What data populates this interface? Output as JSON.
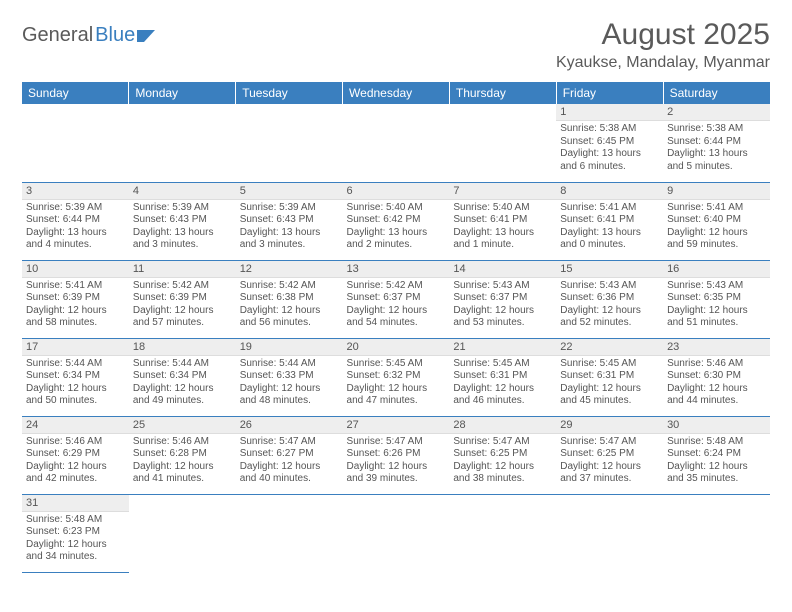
{
  "logo": {
    "text1": "General",
    "text2": "Blue"
  },
  "title": "August 2025",
  "location": "Kyaukse, Mandalay, Myanmar",
  "colors": {
    "header_bg": "#3a7fbf",
    "header_text": "#ffffff",
    "daynum_bg": "#eeeeee",
    "rule": "#3a7fbf",
    "text": "#555555",
    "page_bg": "#ffffff"
  },
  "weekdays": [
    "Sunday",
    "Monday",
    "Tuesday",
    "Wednesday",
    "Thursday",
    "Friday",
    "Saturday"
  ],
  "weeks": [
    [
      null,
      null,
      null,
      null,
      null,
      {
        "n": "1",
        "sr": "Sunrise: 5:38 AM",
        "ss": "Sunset: 6:45 PM",
        "dl": "Daylight: 13 hours and 6 minutes."
      },
      {
        "n": "2",
        "sr": "Sunrise: 5:38 AM",
        "ss": "Sunset: 6:44 PM",
        "dl": "Daylight: 13 hours and 5 minutes."
      }
    ],
    [
      {
        "n": "3",
        "sr": "Sunrise: 5:39 AM",
        "ss": "Sunset: 6:44 PM",
        "dl": "Daylight: 13 hours and 4 minutes."
      },
      {
        "n": "4",
        "sr": "Sunrise: 5:39 AM",
        "ss": "Sunset: 6:43 PM",
        "dl": "Daylight: 13 hours and 3 minutes."
      },
      {
        "n": "5",
        "sr": "Sunrise: 5:39 AM",
        "ss": "Sunset: 6:43 PM",
        "dl": "Daylight: 13 hours and 3 minutes."
      },
      {
        "n": "6",
        "sr": "Sunrise: 5:40 AM",
        "ss": "Sunset: 6:42 PM",
        "dl": "Daylight: 13 hours and 2 minutes."
      },
      {
        "n": "7",
        "sr": "Sunrise: 5:40 AM",
        "ss": "Sunset: 6:41 PM",
        "dl": "Daylight: 13 hours and 1 minute."
      },
      {
        "n": "8",
        "sr": "Sunrise: 5:41 AM",
        "ss": "Sunset: 6:41 PM",
        "dl": "Daylight: 13 hours and 0 minutes."
      },
      {
        "n": "9",
        "sr": "Sunrise: 5:41 AM",
        "ss": "Sunset: 6:40 PM",
        "dl": "Daylight: 12 hours and 59 minutes."
      }
    ],
    [
      {
        "n": "10",
        "sr": "Sunrise: 5:41 AM",
        "ss": "Sunset: 6:39 PM",
        "dl": "Daylight: 12 hours and 58 minutes."
      },
      {
        "n": "11",
        "sr": "Sunrise: 5:42 AM",
        "ss": "Sunset: 6:39 PM",
        "dl": "Daylight: 12 hours and 57 minutes."
      },
      {
        "n": "12",
        "sr": "Sunrise: 5:42 AM",
        "ss": "Sunset: 6:38 PM",
        "dl": "Daylight: 12 hours and 56 minutes."
      },
      {
        "n": "13",
        "sr": "Sunrise: 5:42 AM",
        "ss": "Sunset: 6:37 PM",
        "dl": "Daylight: 12 hours and 54 minutes."
      },
      {
        "n": "14",
        "sr": "Sunrise: 5:43 AM",
        "ss": "Sunset: 6:37 PM",
        "dl": "Daylight: 12 hours and 53 minutes."
      },
      {
        "n": "15",
        "sr": "Sunrise: 5:43 AM",
        "ss": "Sunset: 6:36 PM",
        "dl": "Daylight: 12 hours and 52 minutes."
      },
      {
        "n": "16",
        "sr": "Sunrise: 5:43 AM",
        "ss": "Sunset: 6:35 PM",
        "dl": "Daylight: 12 hours and 51 minutes."
      }
    ],
    [
      {
        "n": "17",
        "sr": "Sunrise: 5:44 AM",
        "ss": "Sunset: 6:34 PM",
        "dl": "Daylight: 12 hours and 50 minutes."
      },
      {
        "n": "18",
        "sr": "Sunrise: 5:44 AM",
        "ss": "Sunset: 6:34 PM",
        "dl": "Daylight: 12 hours and 49 minutes."
      },
      {
        "n": "19",
        "sr": "Sunrise: 5:44 AM",
        "ss": "Sunset: 6:33 PM",
        "dl": "Daylight: 12 hours and 48 minutes."
      },
      {
        "n": "20",
        "sr": "Sunrise: 5:45 AM",
        "ss": "Sunset: 6:32 PM",
        "dl": "Daylight: 12 hours and 47 minutes."
      },
      {
        "n": "21",
        "sr": "Sunrise: 5:45 AM",
        "ss": "Sunset: 6:31 PM",
        "dl": "Daylight: 12 hours and 46 minutes."
      },
      {
        "n": "22",
        "sr": "Sunrise: 5:45 AM",
        "ss": "Sunset: 6:31 PM",
        "dl": "Daylight: 12 hours and 45 minutes."
      },
      {
        "n": "23",
        "sr": "Sunrise: 5:46 AM",
        "ss": "Sunset: 6:30 PM",
        "dl": "Daylight: 12 hours and 44 minutes."
      }
    ],
    [
      {
        "n": "24",
        "sr": "Sunrise: 5:46 AM",
        "ss": "Sunset: 6:29 PM",
        "dl": "Daylight: 12 hours and 42 minutes."
      },
      {
        "n": "25",
        "sr": "Sunrise: 5:46 AM",
        "ss": "Sunset: 6:28 PM",
        "dl": "Daylight: 12 hours and 41 minutes."
      },
      {
        "n": "26",
        "sr": "Sunrise: 5:47 AM",
        "ss": "Sunset: 6:27 PM",
        "dl": "Daylight: 12 hours and 40 minutes."
      },
      {
        "n": "27",
        "sr": "Sunrise: 5:47 AM",
        "ss": "Sunset: 6:26 PM",
        "dl": "Daylight: 12 hours and 39 minutes."
      },
      {
        "n": "28",
        "sr": "Sunrise: 5:47 AM",
        "ss": "Sunset: 6:25 PM",
        "dl": "Daylight: 12 hours and 38 minutes."
      },
      {
        "n": "29",
        "sr": "Sunrise: 5:47 AM",
        "ss": "Sunset: 6:25 PM",
        "dl": "Daylight: 12 hours and 37 minutes."
      },
      {
        "n": "30",
        "sr": "Sunrise: 5:48 AM",
        "ss": "Sunset: 6:24 PM",
        "dl": "Daylight: 12 hours and 35 minutes."
      }
    ],
    [
      {
        "n": "31",
        "sr": "Sunrise: 5:48 AM",
        "ss": "Sunset: 6:23 PM",
        "dl": "Daylight: 12 hours and 34 minutes."
      },
      null,
      null,
      null,
      null,
      null,
      null
    ]
  ]
}
